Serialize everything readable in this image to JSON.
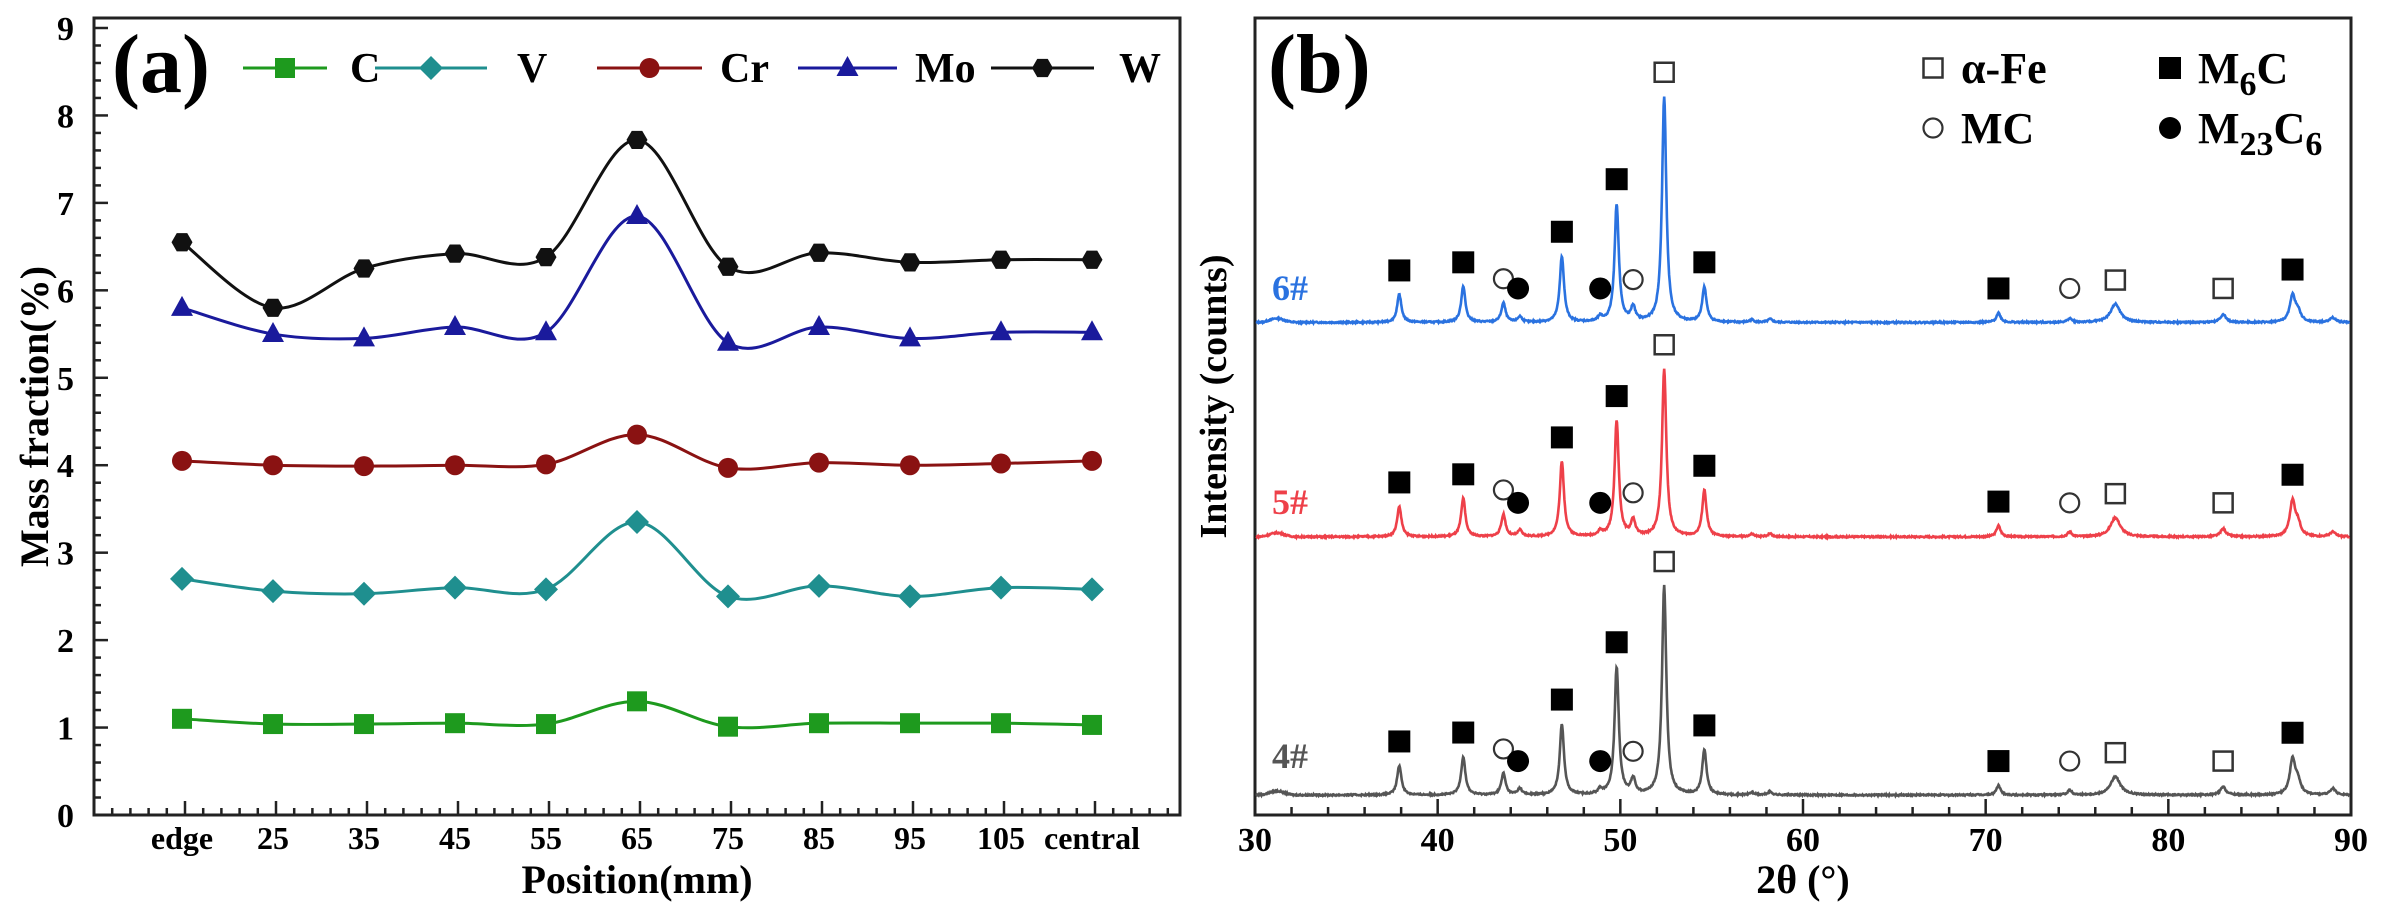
{
  "chart_data": [
    {
      "type": "line",
      "panel_label": "(a)",
      "xlabel": "Position(mm)",
      "ylabel": "Mass fraction(%)",
      "categories": [
        "edge",
        "25",
        "35",
        "45",
        "55",
        "65",
        "75",
        "85",
        "95",
        "105",
        "central"
      ],
      "ylim": [
        0,
        9
      ],
      "yticks": [
        "0",
        "1",
        "2",
        "3",
        "4",
        "5",
        "6",
        "7",
        "8",
        "9"
      ],
      "grid": false,
      "legend": "top",
      "series": [
        {
          "name": "C",
          "color": "#1e9a1e",
          "marker": "square",
          "values": [
            1.1,
            1.04,
            1.04,
            1.05,
            1.04,
            1.3,
            1.01,
            1.05,
            1.05,
            1.05,
            1.03
          ]
        },
        {
          "name": "V",
          "color": "#1f8f8f",
          "marker": "diamond",
          "values": [
            2.7,
            2.56,
            2.53,
            2.6,
            2.58,
            3.35,
            2.5,
            2.62,
            2.5,
            2.6,
            2.58
          ]
        },
        {
          "name": "Cr",
          "color": "#8a1212",
          "marker": "circle",
          "values": [
            4.05,
            4.0,
            3.99,
            4.0,
            4.01,
            4.35,
            3.97,
            4.03,
            4.0,
            4.02,
            4.05
          ]
        },
        {
          "name": "Mo",
          "color": "#1a1a9c",
          "marker": "triangle",
          "values": [
            5.8,
            5.5,
            5.45,
            5.58,
            5.52,
            6.85,
            5.4,
            5.58,
            5.45,
            5.52,
            5.52
          ]
        },
        {
          "name": "W",
          "color": "#111111",
          "marker": "hexagon",
          "values": [
            6.55,
            5.8,
            6.25,
            6.42,
            6.38,
            7.72,
            6.27,
            6.43,
            6.32,
            6.35,
            6.35
          ]
        }
      ]
    },
    {
      "type": "line",
      "panel_label": "(b)",
      "xlabel": "2θ (°)",
      "ylabel": "Intensity (counts)",
      "xlim": [
        30,
        90
      ],
      "xticks": [
        "30",
        "40",
        "50",
        "60",
        "70",
        "80",
        "90"
      ],
      "y_units": "a.u. (stacked, no tick labels)",
      "grid": false,
      "legend": "top-right",
      "phase_legend": [
        {
          "symbol": "open-square",
          "base": "α-Fe",
          "sub": "",
          "tail": ""
        },
        {
          "symbol": "filled-square",
          "base": "M",
          "sub": "6",
          "tail": "C"
        },
        {
          "symbol": "open-circle",
          "base": "MC",
          "sub": "",
          "tail": ""
        },
        {
          "symbol": "filled-circle",
          "base": "M",
          "sub": "23",
          "tail": "C6"
        }
      ],
      "peak_markers": [
        {
          "phase": "filled-square",
          "two_theta": 37.9
        },
        {
          "phase": "filled-square",
          "two_theta": 41.4
        },
        {
          "phase": "open-circle",
          "two_theta": 43.6
        },
        {
          "phase": "filled-circle",
          "two_theta": 44.4
        },
        {
          "phase": "filled-square",
          "two_theta": 46.8
        },
        {
          "phase": "filled-circle",
          "two_theta": 48.9
        },
        {
          "phase": "filled-square",
          "two_theta": 49.8
        },
        {
          "phase": "open-circle",
          "two_theta": 50.7
        },
        {
          "phase": "open-square",
          "two_theta": 52.4
        },
        {
          "phase": "filled-square",
          "two_theta": 54.6
        },
        {
          "phase": "filled-square",
          "two_theta": 70.7
        },
        {
          "phase": "open-circle",
          "two_theta": 74.6
        },
        {
          "phase": "open-square",
          "two_theta": 77.1
        },
        {
          "phase": "open-square",
          "two_theta": 83.0
        },
        {
          "phase": "filled-square",
          "two_theta": 86.8
        }
      ],
      "series": [
        {
          "name": "6#",
          "color": "#2a72e0",
          "offset": 61.8,
          "peaks": [
            [
              37.9,
              3.5
            ],
            [
              41.4,
              4.5
            ],
            [
              43.6,
              2.4
            ],
            [
              44.5,
              0.7
            ],
            [
              46.8,
              8.3
            ],
            [
              48.9,
              0.6
            ],
            [
              49.8,
              14.8
            ],
            [
              50.7,
              1.8
            ],
            [
              52.4,
              28.3
            ],
            [
              54.6,
              4.4
            ],
            [
              57.2,
              0.3
            ],
            [
              58.2,
              0.4
            ],
            [
              70.7,
              1.2
            ],
            [
              74.6,
              0.5
            ],
            [
              77.1,
              2.3
            ],
            [
              83.0,
              1.0
            ],
            [
              86.8,
              3.3
            ],
            [
              87.1,
              1.2
            ],
            [
              89.0,
              0.6
            ]
          ]
        },
        {
          "name": "5#",
          "color": "#ee4049",
          "offset": 34.9,
          "peaks": [
            [
              37.9,
              3.8
            ],
            [
              41.4,
              4.8
            ],
            [
              43.6,
              2.8
            ],
            [
              44.5,
              0.8
            ],
            [
              46.8,
              9.4
            ],
            [
              48.9,
              0.6
            ],
            [
              49.8,
              14.5
            ],
            [
              50.7,
              2.0
            ],
            [
              52.4,
              21.0
            ],
            [
              54.6,
              5.8
            ],
            [
              57.2,
              0.3
            ],
            [
              58.2,
              0.4
            ],
            [
              70.7,
              1.4
            ],
            [
              74.6,
              0.6
            ],
            [
              77.1,
              2.4
            ],
            [
              83.0,
              1.0
            ],
            [
              86.8,
              4.4
            ],
            [
              87.1,
              1.4
            ],
            [
              89.0,
              0.6
            ]
          ]
        },
        {
          "name": "4#",
          "color": "#555555",
          "offset": 2.5,
          "peaks": [
            [
              37.9,
              3.7
            ],
            [
              41.4,
              4.8
            ],
            [
              43.6,
              2.7
            ],
            [
              44.5,
              0.8
            ],
            [
              46.8,
              8.9
            ],
            [
              48.9,
              0.6
            ],
            [
              49.8,
              16.0
            ],
            [
              50.7,
              1.9
            ],
            [
              52.4,
              26.2
            ],
            [
              54.6,
              5.6
            ],
            [
              57.2,
              0.3
            ],
            [
              58.2,
              0.4
            ],
            [
              70.7,
              1.2
            ],
            [
              74.6,
              0.6
            ],
            [
              77.1,
              2.3
            ],
            [
              83.0,
              1.0
            ],
            [
              86.8,
              4.4
            ],
            [
              87.1,
              1.5
            ],
            [
              89.0,
              0.8
            ]
          ]
        }
      ]
    }
  ]
}
